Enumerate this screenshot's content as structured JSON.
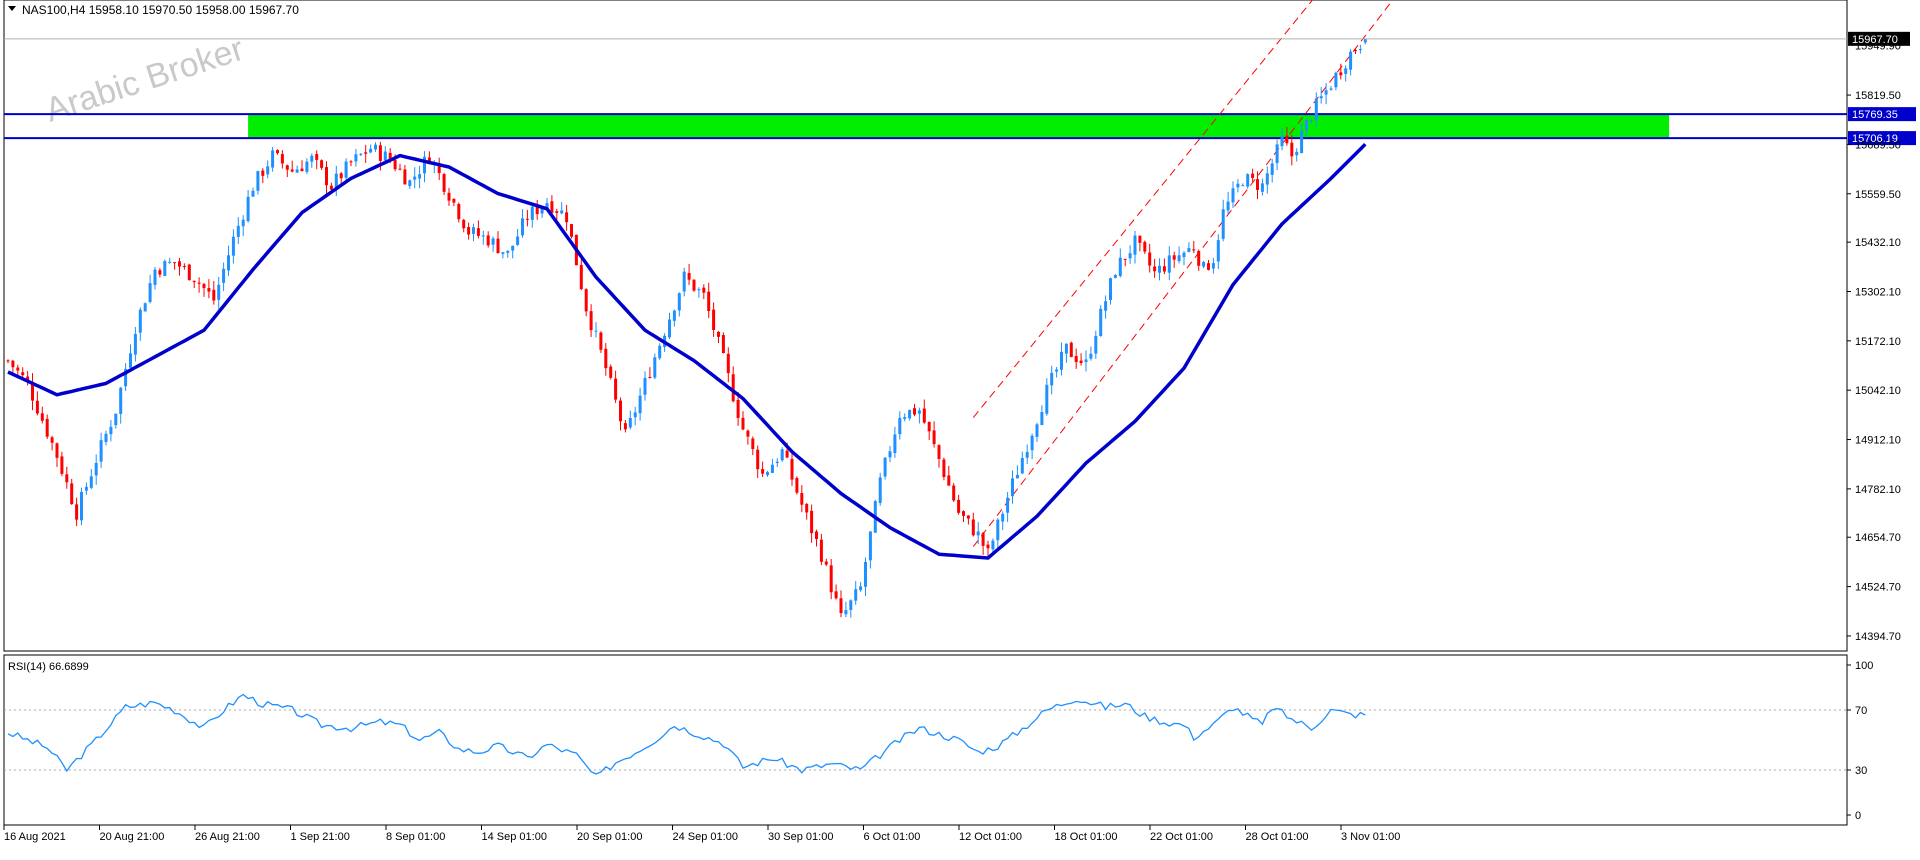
{
  "chart_data": {
    "type": "candlestick",
    "symbol_header": "NAS100,H4  15958.10 15970.50 15958.00 15967.70",
    "watermark": "Arabic Broker",
    "price_axis": {
      "ticks": [
        "15819.50",
        "15689.50",
        "15559.50",
        "15432.10",
        "15302.10",
        "15172.10",
        "15042.10",
        "14912.10",
        "14782.10",
        "14654.70",
        "14524.70",
        "14394.70"
      ],
      "ylim": [
        14355,
        16070
      ]
    },
    "current_price": "15967.70",
    "current_price_partial": "15949.90",
    "levels": [
      {
        "label": "15769.35",
        "value": 15769.35
      },
      {
        "label": "15706.19",
        "value": 15706.19
      }
    ],
    "zone": {
      "low": 15706.19,
      "high": 15769.35,
      "start_bar": 49,
      "end_bar": 339
    },
    "time_axis": [
      "16 Aug 2021",
      "20 Aug 21:00",
      "26 Aug 21:00",
      "1 Sep 21:00",
      "8 Sep 01:00",
      "14 Sep 01:00",
      "20 Sep 01:00",
      "24 Sep 01:00",
      "30 Sep 01:00",
      "6 Oct 01:00",
      "12 Oct 01:00",
      "18 Oct 01:00",
      "22 Oct 01:00",
      "28 Oct 01:00",
      "3 Nov 01:00"
    ],
    "bar_count": 278,
    "anchors": [
      [
        0,
        15120
      ],
      [
        4,
        15060
      ],
      [
        10,
        14870
      ],
      [
        14,
        14720
      ],
      [
        18,
        14860
      ],
      [
        22,
        14990
      ],
      [
        26,
        15210
      ],
      [
        30,
        15360
      ],
      [
        34,
        15380
      ],
      [
        38,
        15340
      ],
      [
        42,
        15280
      ],
      [
        46,
        15440
      ],
      [
        50,
        15580
      ],
      [
        54,
        15660
      ],
      [
        58,
        15620
      ],
      [
        62,
        15650
      ],
      [
        66,
        15580
      ],
      [
        70,
        15640
      ],
      [
        74,
        15680
      ],
      [
        78,
        15650
      ],
      [
        82,
        15590
      ],
      [
        86,
        15660
      ],
      [
        90,
        15560
      ],
      [
        94,
        15460
      ],
      [
        98,
        15440
      ],
      [
        102,
        15400
      ],
      [
        106,
        15500
      ],
      [
        110,
        15540
      ],
      [
        114,
        15500
      ],
      [
        118,
        15260
      ],
      [
        122,
        15100
      ],
      [
        126,
        14920
      ],
      [
        130,
        15060
      ],
      [
        134,
        15200
      ],
      [
        138,
        15340
      ],
      [
        142,
        15290
      ],
      [
        146,
        15120
      ],
      [
        150,
        14940
      ],
      [
        154,
        14820
      ],
      [
        158,
        14880
      ],
      [
        162,
        14740
      ],
      [
        166,
        14610
      ],
      [
        170,
        14440
      ],
      [
        174,
        14520
      ],
      [
        178,
        14800
      ],
      [
        182,
        14980
      ],
      [
        186,
        14990
      ],
      [
        190,
        14860
      ],
      [
        194,
        14720
      ],
      [
        198,
        14660
      ],
      [
        200,
        14610
      ],
      [
        204,
        14760
      ],
      [
        208,
        14900
      ],
      [
        212,
        15040
      ],
      [
        216,
        15150
      ],
      [
        220,
        15110
      ],
      [
        222,
        15200
      ],
      [
        226,
        15360
      ],
      [
        230,
        15430
      ],
      [
        234,
        15350
      ],
      [
        238,
        15390
      ],
      [
        242,
        15420
      ],
      [
        244,
        15360
      ],
      [
        246,
        15390
      ],
      [
        248,
        15510
      ],
      [
        252,
        15600
      ],
      [
        256,
        15580
      ],
      [
        260,
        15700
      ],
      [
        262,
        15660
      ],
      [
        266,
        15770
      ],
      [
        270,
        15850
      ],
      [
        274,
        15930
      ],
      [
        277,
        15968
      ]
    ],
    "moving_average": {
      "points": [
        [
          0,
          15090
        ],
        [
          10,
          15030
        ],
        [
          20,
          15060
        ],
        [
          30,
          15130
        ],
        [
          40,
          15200
        ],
        [
          50,
          15360
        ],
        [
          60,
          15510
        ],
        [
          70,
          15600
        ],
        [
          80,
          15660
        ],
        [
          90,
          15630
        ],
        [
          100,
          15560
        ],
        [
          110,
          15520
        ],
        [
          120,
          15340
        ],
        [
          130,
          15200
        ],
        [
          140,
          15120
        ],
        [
          150,
          15020
        ],
        [
          160,
          14880
        ],
        [
          170,
          14770
        ],
        [
          180,
          14680
        ],
        [
          190,
          14610
        ],
        [
          200,
          14600
        ],
        [
          210,
          14710
        ],
        [
          220,
          14850
        ],
        [
          230,
          14960
        ],
        [
          240,
          15100
        ],
        [
          250,
          15320
        ],
        [
          260,
          15480
        ],
        [
          270,
          15600
        ],
        [
          277,
          15690
        ]
      ]
    },
    "channel": {
      "upper": [
        [
          197,
          14970
        ],
        [
          270,
          16130
        ]
      ],
      "lower": [
        [
          197,
          14630
        ],
        [
          282,
          16060
        ]
      ]
    },
    "rsi": {
      "label": "RSI(14) 66.6899",
      "levels": [
        70,
        30
      ],
      "ticks": [
        "100",
        "70",
        "30",
        "0"
      ],
      "ylim": [
        0,
        100
      ],
      "points": [
        [
          0,
          55
        ],
        [
          8,
          45
        ],
        [
          12,
          30
        ],
        [
          18,
          50
        ],
        [
          24,
          72
        ],
        [
          30,
          75
        ],
        [
          34,
          70
        ],
        [
          40,
          58
        ],
        [
          44,
          70
        ],
        [
          48,
          80
        ],
        [
          52,
          74
        ],
        [
          58,
          70
        ],
        [
          64,
          60
        ],
        [
          70,
          58
        ],
        [
          76,
          62
        ],
        [
          80,
          60
        ],
        [
          84,
          50
        ],
        [
          88,
          55
        ],
        [
          92,
          44
        ],
        [
          96,
          42
        ],
        [
          100,
          46
        ],
        [
          106,
          38
        ],
        [
          110,
          47
        ],
        [
          116,
          40
        ],
        [
          120,
          25
        ],
        [
          124,
          35
        ],
        [
          128,
          42
        ],
        [
          132,
          50
        ],
        [
          136,
          60
        ],
        [
          140,
          55
        ],
        [
          146,
          48
        ],
        [
          150,
          32
        ],
        [
          156,
          38
        ],
        [
          162,
          30
        ],
        [
          168,
          34
        ],
        [
          174,
          30
        ],
        [
          178,
          40
        ],
        [
          182,
          50
        ],
        [
          186,
          58
        ],
        [
          190,
          54
        ],
        [
          194,
          50
        ],
        [
          198,
          42
        ],
        [
          202,
          46
        ],
        [
          206,
          55
        ],
        [
          212,
          70
        ],
        [
          218,
          78
        ],
        [
          224,
          72
        ],
        [
          228,
          74
        ],
        [
          232,
          66
        ],
        [
          236,
          62
        ],
        [
          240,
          60
        ],
        [
          242,
          52
        ],
        [
          246,
          60
        ],
        [
          250,
          72
        ],
        [
          252,
          68
        ],
        [
          256,
          60
        ],
        [
          258,
          72
        ],
        [
          262,
          64
        ],
        [
          266,
          58
        ],
        [
          270,
          70
        ],
        [
          274,
          67
        ],
        [
          277,
          66.7
        ]
      ]
    }
  }
}
